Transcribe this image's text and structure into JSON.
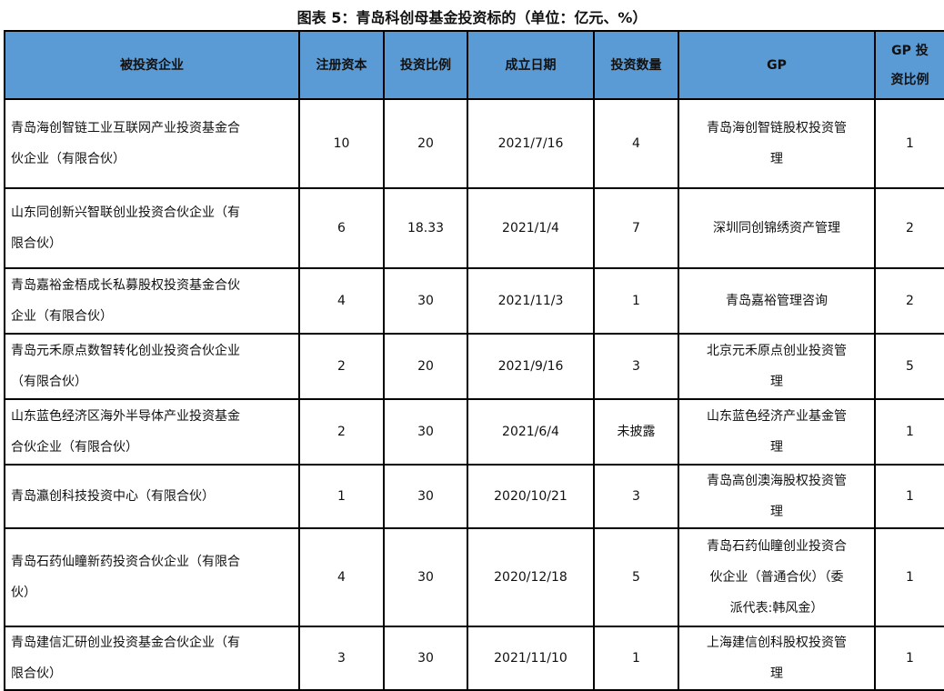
{
  "title": "图表 5：青岛科创母基金投资标的（单位：亿元、%）",
  "colors": {
    "header_bg": "#5b9bd5"
  },
  "headers": [
    "被投资企业",
    "注册资本",
    "投资比例",
    "成立日期",
    "投资数量",
    "GP",
    "GP 投资比例"
  ],
  "header_lines": {
    "gp_ratio": [
      "GP 投",
      "资比例"
    ]
  },
  "rows": [
    {
      "company": [
        "青岛海创智链工业互联网产业投资基金合",
        "伙企业（有限合伙）"
      ],
      "capital": "10",
      "ratio": "20",
      "date": "2021/7/16",
      "count": "4",
      "gp": [
        "青岛海创智链股权投资管",
        "理"
      ],
      "gp_ratio": "1"
    },
    {
      "company": [
        "山东同创新兴智联创业投资合伙企业（有",
        "限合伙）"
      ],
      "capital": "6",
      "ratio": "18.33",
      "date": "2021/1/4",
      "count": "7",
      "gp": [
        "深圳同创锦绣资产管理"
      ],
      "gp_ratio": "2"
    },
    {
      "company": [
        "青岛嘉裕金梧成长私募股权投资基金合伙",
        "企业（有限合伙）"
      ],
      "capital": "4",
      "ratio": "30",
      "date": "2021/11/3",
      "count": "1",
      "gp": [
        "青岛嘉裕管理咨询"
      ],
      "gp_ratio": "2"
    },
    {
      "company": [
        "青岛元禾原点数智转化创业投资合伙企业",
        "（有限合伙）"
      ],
      "capital": "2",
      "ratio": "20",
      "date": "2021/9/16",
      "count": "3",
      "gp": [
        "北京元禾原点创业投资管",
        "理"
      ],
      "gp_ratio": "5"
    },
    {
      "company": [
        "山东蓝色经济区海外半导体产业投资基金",
        "合伙企业（有限合伙）"
      ],
      "capital": "2",
      "ratio": "30",
      "date": "2021/6/4",
      "count": "未披露",
      "gp": [
        "山东蓝色经济产业基金管",
        "理"
      ],
      "gp_ratio": "1"
    },
    {
      "company": [
        "青岛瀛创科技投资中心（有限合伙）"
      ],
      "capital": "1",
      "ratio": "30",
      "date": "2020/10/21",
      "count": "3",
      "gp": [
        "青岛高创澳海股权投资管",
        "理"
      ],
      "gp_ratio": "1"
    },
    {
      "company": [
        "青岛石药仙瞳新药投资合伙企业（有限合",
        "伙）"
      ],
      "capital": "4",
      "ratio": "30",
      "date": "2020/12/18",
      "count": "5",
      "gp": [
        "青岛石药仙瞳创业投资合",
        "伙企业（普通合伙）（委",
        "派代表:韩风金）"
      ],
      "gp_ratio": "1"
    },
    {
      "company": [
        "青岛建信汇研创业投资基金合伙企业（有",
        "限合伙）"
      ],
      "capital": "3",
      "ratio": "30",
      "date": "2021/11/10",
      "count": "1",
      "gp": [
        "上海建信创科股权投资管",
        "理"
      ],
      "gp_ratio": "1"
    }
  ]
}
